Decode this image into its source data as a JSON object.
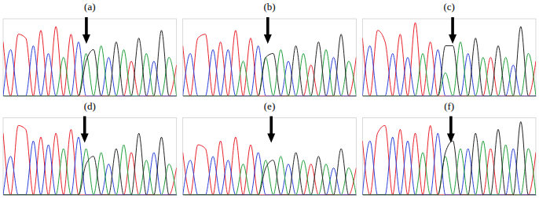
{
  "chart_data": [
    {
      "type": "line",
      "title": "(a)",
      "x": [
        0,
        1,
        2,
        3,
        4,
        5,
        6,
        7,
        8,
        9,
        10,
        11,
        12,
        13,
        14,
        15,
        16,
        17,
        18,
        19,
        20,
        21,
        22,
        23
      ],
      "xlim": [
        0,
        23
      ],
      "ylim": [
        0,
        100
      ],
      "tick_labels": false,
      "series": [
        {
          "color": "#e8202a",
          "values": [
            70,
            0,
            80,
            75,
            0,
            85,
            0,
            90,
            0,
            80,
            0,
            0,
            0,
            0,
            0,
            0,
            0,
            45,
            0,
            0,
            0,
            0,
            0,
            40
          ]
        },
        {
          "color": "#2a3fd8",
          "values": [
            0,
            60,
            0,
            0,
            65,
            0,
            55,
            0,
            0,
            0,
            70,
            0,
            0,
            0,
            50,
            0,
            0,
            0,
            0,
            0,
            45,
            0,
            0,
            0
          ]
        },
        {
          "color": "#1e9e3a",
          "values": [
            0,
            0,
            0,
            0,
            0,
            0,
            0,
            0,
            50,
            0,
            0,
            55,
            0,
            65,
            0,
            0,
            60,
            0,
            0,
            55,
            0,
            0,
            50,
            0
          ]
        },
        {
          "color": "#222222",
          "values": [
            0,
            0,
            0,
            0,
            0,
            0,
            0,
            0,
            0,
            0,
            0,
            45,
            60,
            0,
            0,
            70,
            0,
            0,
            75,
            0,
            0,
            85,
            0,
            0
          ]
        }
      ]
    },
    {
      "type": "line",
      "title": "(b)",
      "x": [
        0,
        1,
        2,
        3,
        4,
        5,
        6,
        7,
        8,
        9,
        10,
        11,
        12,
        13,
        14,
        15,
        16,
        17,
        18,
        19,
        20,
        21,
        22,
        23
      ],
      "xlim": [
        0,
        23
      ],
      "ylim": [
        0,
        100
      ],
      "tick_labels": false,
      "series": [
        {
          "color": "#e8202a",
          "values": [
            65,
            0,
            75,
            80,
            0,
            70,
            0,
            85,
            0,
            75,
            0,
            0,
            0,
            0,
            0,
            0,
            0,
            40,
            0,
            0,
            0,
            0,
            0,
            50
          ]
        },
        {
          "color": "#2a3fd8",
          "values": [
            0,
            55,
            0,
            0,
            60,
            0,
            60,
            0,
            0,
            0,
            65,
            0,
            0,
            0,
            45,
            0,
            0,
            0,
            0,
            0,
            50,
            0,
            0,
            0
          ]
        },
        {
          "color": "#1e9e3a",
          "values": [
            0,
            0,
            0,
            0,
            0,
            0,
            0,
            0,
            45,
            0,
            0,
            50,
            0,
            60,
            0,
            0,
            55,
            0,
            0,
            60,
            0,
            0,
            45,
            0
          ]
        },
        {
          "color": "#222222",
          "values": [
            0,
            0,
            0,
            0,
            0,
            0,
            0,
            0,
            0,
            0,
            0,
            50,
            55,
            0,
            0,
            65,
            0,
            0,
            70,
            0,
            0,
            80,
            0,
            0
          ]
        }
      ]
    },
    {
      "type": "line",
      "title": "(c)",
      "x": [
        0,
        1,
        2,
        3,
        4,
        5,
        6,
        7,
        8,
        9,
        10,
        11,
        12,
        13,
        14,
        15,
        16,
        17,
        18,
        19,
        20,
        21,
        22,
        23
      ],
      "xlim": [
        0,
        23
      ],
      "ylim": [
        0,
        100
      ],
      "tick_labels": false,
      "series": [
        {
          "color": "#e8202a",
          "values": [
            75,
            0,
            85,
            70,
            0,
            80,
            0,
            95,
            0,
            70,
            0,
            0,
            0,
            0,
            0,
            0,
            0,
            50,
            0,
            0,
            0,
            0,
            0,
            45
          ]
        },
        {
          "color": "#2a3fd8",
          "values": [
            0,
            65,
            0,
            0,
            55,
            0,
            50,
            0,
            0,
            0,
            60,
            0,
            0,
            0,
            55,
            0,
            0,
            0,
            0,
            0,
            40,
            0,
            0,
            0
          ]
        },
        {
          "color": "#1e9e3a",
          "values": [
            0,
            0,
            0,
            0,
            0,
            0,
            0,
            0,
            55,
            0,
            0,
            30,
            0,
            70,
            0,
            0,
            50,
            0,
            0,
            50,
            0,
            0,
            55,
            0
          ]
        },
        {
          "color": "#222222",
          "values": [
            0,
            0,
            0,
            0,
            0,
            0,
            0,
            0,
            0,
            0,
            0,
            65,
            65,
            0,
            0,
            75,
            0,
            0,
            65,
            0,
            0,
            90,
            0,
            0
          ]
        }
      ]
    },
    {
      "type": "line",
      "title": "(d)",
      "x": [
        0,
        1,
        2,
        3,
        4,
        5,
        6,
        7,
        8,
        9,
        10,
        11,
        12,
        13,
        14,
        15,
        16,
        17,
        18,
        19,
        20,
        21,
        22,
        23
      ],
      "xlim": [
        0,
        23
      ],
      "ylim": [
        0,
        100
      ],
      "tick_labels": false,
      "series": [
        {
          "color": "#e8202a",
          "values": [
            80,
            0,
            90,
            85,
            0,
            75,
            0,
            80,
            0,
            85,
            0,
            0,
            0,
            0,
            0,
            0,
            0,
            55,
            0,
            0,
            0,
            0,
            0,
            35
          ]
        },
        {
          "color": "#2a3fd8",
          "values": [
            0,
            50,
            0,
            0,
            70,
            0,
            65,
            0,
            0,
            0,
            75,
            0,
            0,
            0,
            40,
            0,
            0,
            0,
            0,
            0,
            55,
            0,
            0,
            0
          ]
        },
        {
          "color": "#1e9e3a",
          "values": [
            0,
            0,
            0,
            0,
            0,
            0,
            0,
            0,
            60,
            0,
            0,
            60,
            0,
            55,
            0,
            0,
            65,
            0,
            0,
            45,
            0,
            0,
            40,
            0
          ]
        },
        {
          "color": "#222222",
          "values": [
            0,
            0,
            0,
            0,
            0,
            0,
            0,
            0,
            0,
            0,
            0,
            40,
            50,
            0,
            0,
            60,
            0,
            0,
            80,
            0,
            0,
            75,
            0,
            0
          ]
        }
      ]
    },
    {
      "type": "line",
      "title": "(e)",
      "x": [
        0,
        1,
        2,
        3,
        4,
        5,
        6,
        7,
        8,
        9,
        10,
        11,
        12,
        13,
        14,
        15,
        16,
        17,
        18,
        19,
        20,
        21,
        22,
        23
      ],
      "xlim": [
        0,
        23
      ],
      "ylim": [
        0,
        100
      ],
      "tick_labels": false,
      "series": [
        {
          "color": "#e8202a",
          "values": [
            55,
            0,
            65,
            60,
            0,
            70,
            0,
            75,
            0,
            65,
            0,
            0,
            0,
            0,
            0,
            0,
            0,
            40,
            0,
            0,
            0,
            0,
            0,
            35
          ]
        },
        {
          "color": "#2a3fd8",
          "values": [
            0,
            45,
            0,
            0,
            50,
            0,
            45,
            0,
            0,
            0,
            55,
            0,
            0,
            0,
            40,
            0,
            0,
            0,
            0,
            0,
            35,
            0,
            0,
            0
          ]
        },
        {
          "color": "#1e9e3a",
          "values": [
            0,
            0,
            0,
            0,
            0,
            0,
            0,
            0,
            40,
            0,
            0,
            45,
            0,
            50,
            0,
            0,
            45,
            0,
            0,
            40,
            0,
            0,
            35,
            0
          ]
        },
        {
          "color": "#222222",
          "values": [
            0,
            0,
            0,
            0,
            0,
            0,
            0,
            0,
            0,
            0,
            0,
            35,
            45,
            0,
            0,
            55,
            0,
            0,
            50,
            0,
            0,
            60,
            0,
            0
          ]
        }
      ]
    },
    {
      "type": "line",
      "title": "(f)",
      "x": [
        0,
        1,
        2,
        3,
        4,
        5,
        6,
        7,
        8,
        9,
        10,
        11,
        12,
        13,
        14,
        15,
        16,
        17,
        18,
        19,
        20,
        21,
        22,
        23
      ],
      "xlim": [
        0,
        23
      ],
      "ylim": [
        0,
        100
      ],
      "tick_labels": false,
      "series": [
        {
          "color": "#e8202a",
          "values": [
            70,
            0,
            80,
            90,
            0,
            85,
            0,
            80,
            0,
            90,
            0,
            0,
            0,
            0,
            0,
            0,
            0,
            60,
            0,
            0,
            0,
            0,
            0,
            55
          ]
        },
        {
          "color": "#2a3fd8",
          "values": [
            0,
            70,
            0,
            0,
            75,
            0,
            70,
            0,
            0,
            0,
            80,
            0,
            0,
            0,
            60,
            0,
            0,
            0,
            0,
            0,
            60,
            0,
            0,
            0
          ]
        },
        {
          "color": "#1e9e3a",
          "values": [
            0,
            0,
            0,
            0,
            0,
            0,
            0,
            0,
            55,
            0,
            0,
            50,
            0,
            60,
            0,
            0,
            70,
            0,
            0,
            65,
            0,
            0,
            60,
            0
          ]
        },
        {
          "color": "#222222",
          "values": [
            0,
            0,
            0,
            0,
            0,
            0,
            0,
            0,
            0,
            0,
            0,
            55,
            70,
            0,
            0,
            80,
            0,
            0,
            85,
            0,
            0,
            95,
            0,
            0
          ]
        }
      ]
    }
  ]
}
